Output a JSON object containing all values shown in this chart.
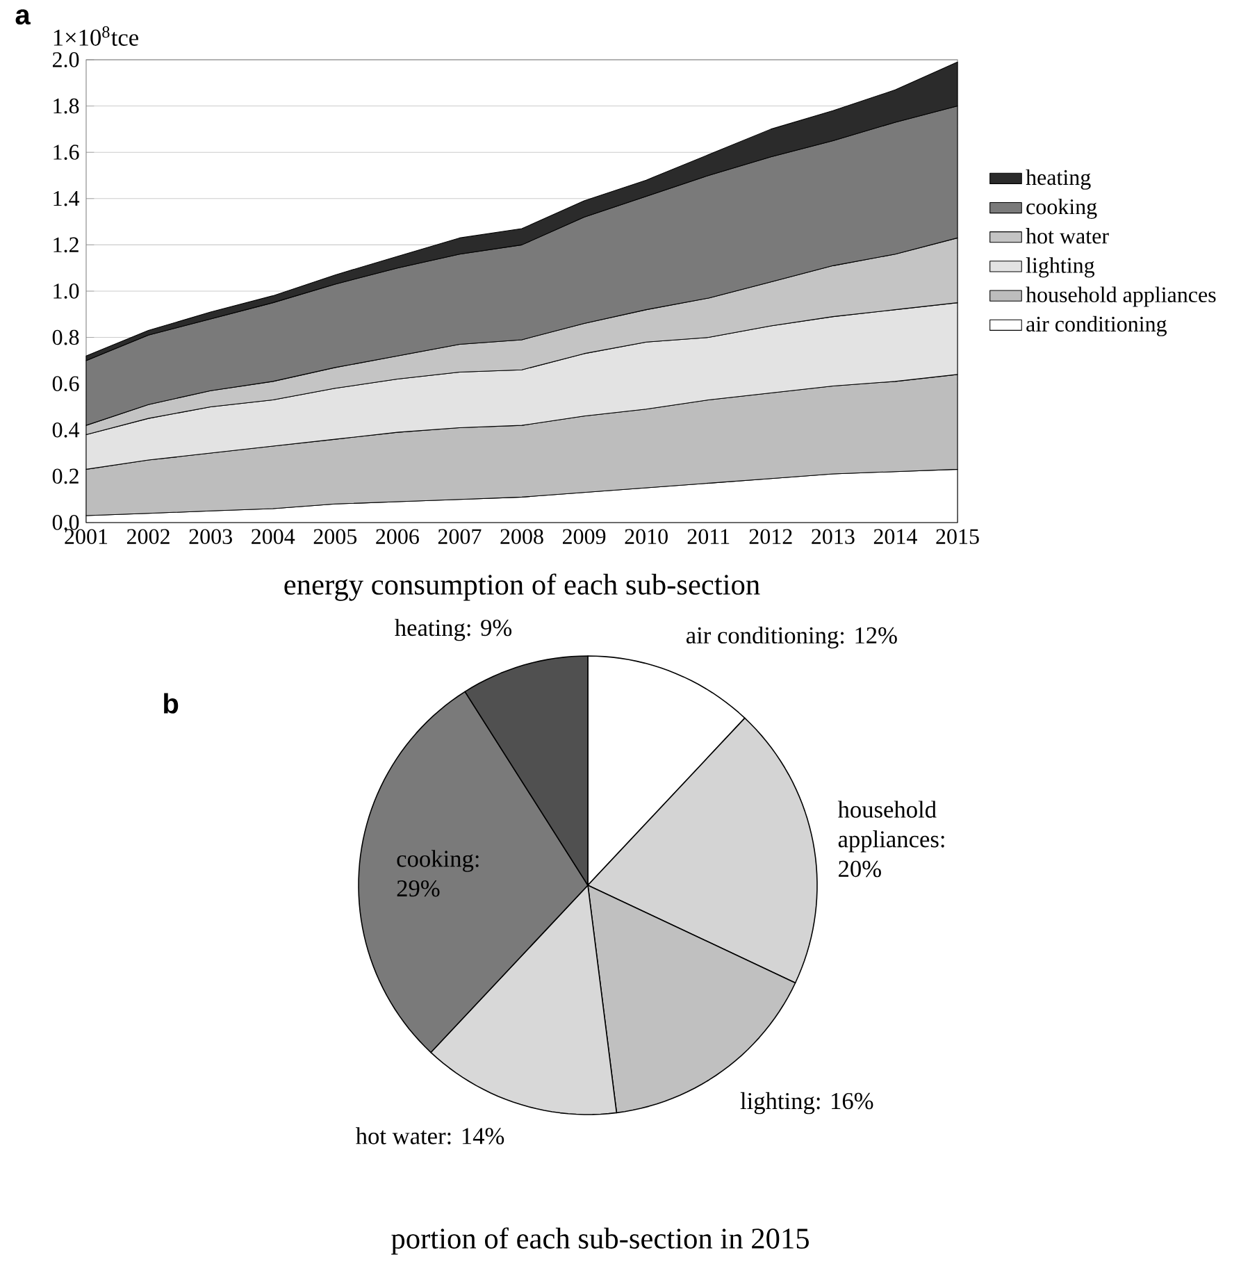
{
  "chart_data": [
    {
      "type": "area",
      "stacked": true,
      "title": "energy consumption of each sub-section",
      "ylabel": "1×10$^{8}$tce",
      "annotations": [
        "a"
      ],
      "categories": [
        "2001",
        "2002",
        "2003",
        "2004",
        "2005",
        "2006",
        "2007",
        "2008",
        "2009",
        "2010",
        "2011",
        "2012",
        "2013",
        "2014",
        "2015"
      ],
      "ylim": [
        0,
        2.0
      ],
      "yticks": [
        {
          "value": 0,
          "label": "0.0"
        },
        {
          "value": 0.2,
          "label": "0.2"
        },
        {
          "value": 0.4,
          "label": "0.4"
        },
        {
          "value": 0.6,
          "label": "0.6"
        },
        {
          "value": 0.8,
          "label": "0.8"
        },
        {
          "value": 1.0,
          "label": "1.0"
        },
        {
          "value": 1.2,
          "label": "1.2"
        },
        {
          "value": 1.4,
          "label": "1.4"
        },
        {
          "value": 1.6,
          "label": "1.6"
        },
        {
          "value": 1.8,
          "label": "1.8"
        },
        {
          "value": 2.0,
          "label": "2.0"
        }
      ],
      "grid": "y",
      "legend": "right",
      "series": [
        {
          "name": "air conditioning",
          "color": "#ffffff",
          "values": [
            0.03,
            0.04,
            0.05,
            0.06,
            0.08,
            0.09,
            0.1,
            0.11,
            0.13,
            0.15,
            0.17,
            0.19,
            0.21,
            0.22,
            0.23
          ]
        },
        {
          "name": "household appliances",
          "color": "#bdbdbd",
          "values": [
            0.2,
            0.23,
            0.25,
            0.27,
            0.28,
            0.3,
            0.31,
            0.31,
            0.33,
            0.34,
            0.36,
            0.37,
            0.38,
            0.39,
            0.41
          ]
        },
        {
          "name": "lighting",
          "color": "#e3e3e3",
          "values": [
            0.15,
            0.18,
            0.2,
            0.2,
            0.22,
            0.23,
            0.24,
            0.24,
            0.27,
            0.29,
            0.27,
            0.29,
            0.3,
            0.31,
            0.31
          ]
        },
        {
          "name": "hot water",
          "color": "#c4c4c4",
          "values": [
            0.04,
            0.06,
            0.07,
            0.08,
            0.09,
            0.1,
            0.12,
            0.13,
            0.13,
            0.14,
            0.17,
            0.19,
            0.22,
            0.24,
            0.28
          ]
        },
        {
          "name": "cooking",
          "color": "#7a7a7a",
          "values": [
            0.28,
            0.3,
            0.31,
            0.34,
            0.36,
            0.38,
            0.39,
            0.41,
            0.46,
            0.49,
            0.53,
            0.54,
            0.54,
            0.57,
            0.57
          ]
        },
        {
          "name": "heating",
          "color": "#2b2b2b",
          "values": [
            0.02,
            0.02,
            0.03,
            0.03,
            0.04,
            0.05,
            0.07,
            0.07,
            0.07,
            0.07,
            0.09,
            0.12,
            0.13,
            0.14,
            0.19
          ]
        }
      ]
    },
    {
      "type": "pie",
      "title": "portion of each sub-section in 2015",
      "annotations": [
        "b"
      ],
      "categories": [
        "air conditioning: 12%",
        "household appliances: 20%",
        "lighting: 16%",
        "hot water: 14%",
        "cooking: 29%",
        "heating: 9%"
      ],
      "values": [
        12,
        20,
        16,
        14,
        29,
        9
      ],
      "colors": [
        "#ffffff",
        "#d4d4d4",
        "#c0c0c0",
        "#d8d8d8",
        "#7a7a7a",
        "#505050"
      ]
    }
  ]
}
